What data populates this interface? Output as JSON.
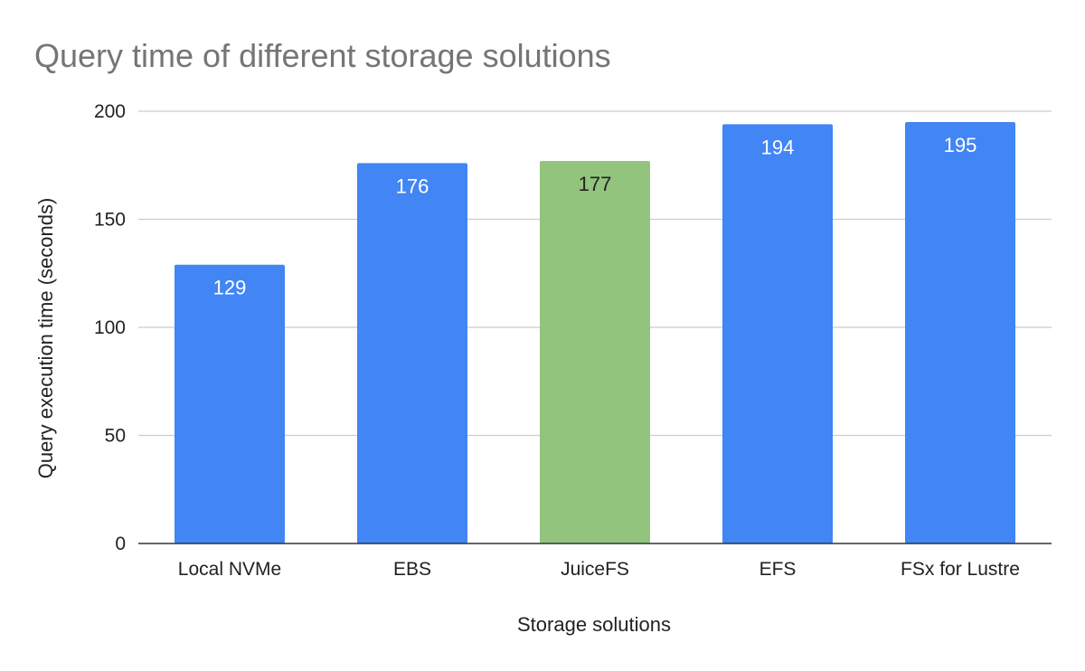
{
  "chart_data": {
    "type": "bar",
    "title": "Query time of different storage solutions",
    "xlabel": "Storage solutions",
    "ylabel": "Query execution time (seconds)",
    "categories": [
      "Local NVMe",
      "EBS",
      "JuiceFS",
      "EFS",
      "FSx for Lustre"
    ],
    "values": [
      129,
      176,
      177,
      194,
      195
    ],
    "data_labels": [
      "129",
      "176",
      "177",
      "194",
      "195"
    ],
    "bar_colors": [
      "#4285f4",
      "#4285f4",
      "#93c47d",
      "#4285f4",
      "#4285f4"
    ],
    "data_label_colors": [
      "#ffffff",
      "#ffffff",
      "#222222",
      "#ffffff",
      "#ffffff"
    ],
    "ylim": [
      0,
      200
    ],
    "yticks": [
      0,
      50,
      100,
      150,
      200
    ],
    "ytick_labels": [
      "0",
      "50",
      "100",
      "150",
      "200"
    ],
    "grid": true,
    "legend": "none",
    "colors": {
      "grid": "#cccccc",
      "axis": "#333333",
      "title": "#757575",
      "text": "#222222"
    }
  }
}
